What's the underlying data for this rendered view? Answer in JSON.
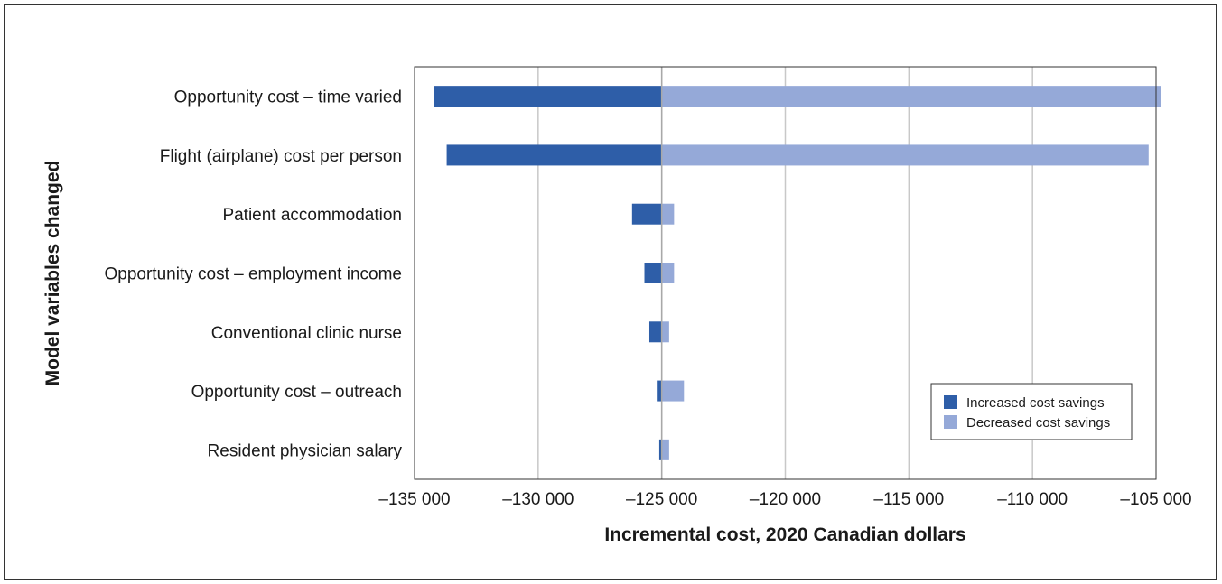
{
  "chart_data": {
    "type": "bar",
    "orientation": "horizontal",
    "subtype": "tornado",
    "title": "",
    "xlabel": "Incremental cost, 2020 Canadian dollars",
    "ylabel": "Model variables changed",
    "xlim": [
      -135000,
      -105000
    ],
    "xticks": [
      -135000,
      -130000,
      -125000,
      -120000,
      -115000,
      -110000,
      -105000
    ],
    "xtick_labels": [
      "–135 000",
      "–130 000",
      "–125 000",
      "–120 000",
      "–115 000",
      "–110 000",
      "–105 000"
    ],
    "baseline": -125000,
    "grid": true,
    "legend_position": "bottom-right",
    "categories": [
      "Opportunity cost – time varied",
      "Flight (airplane) cost per person",
      "Patient accommodation",
      "Opportunity cost – employment income",
      "Conventional clinic nurse",
      "Opportunity cost – outreach",
      "Resident physician salary"
    ],
    "series": [
      {
        "name": "Increased cost savings",
        "color": "#2e5ea8",
        "values": [
          -134200,
          -133700,
          -126200,
          -125700,
          -125500,
          -125200,
          -125100
        ]
      },
      {
        "name": "Decreased cost savings",
        "color": "#95a9d8",
        "values": [
          -104800,
          -105300,
          -124500,
          -124500,
          -124700,
          -124100,
          -124700
        ]
      }
    ]
  }
}
